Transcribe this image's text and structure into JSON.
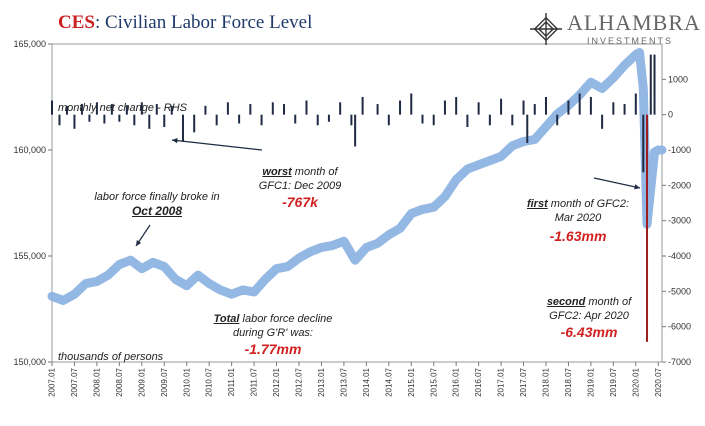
{
  "title": {
    "code": "CES",
    "rest": ": Civilian Labor Force Level"
  },
  "logo": {
    "name": "ALHAMBRA",
    "sub": "INVESTMENTS",
    "icon": "diamond-logo-icon"
  },
  "colors": {
    "level_line": "#8eb4e3",
    "bars": "#1f2a44",
    "highlight_bar": "#9b1c1c",
    "title_code": "#cc1f1f",
    "annotation_value": "#d22020"
  },
  "annotations": {
    "rhs_label": "monthly net change - RHS",
    "units_label": "thousands of persons",
    "oct2008_line1": "labor force finally broke in",
    "oct2008_line2": "Oct 2008",
    "gfc1_line1a": "worst",
    "gfc1_line1b": " month of",
    "gfc1_line2": "GFC1: Dec 2009",
    "gfc1_value": "-767k",
    "total_line1a": "Total",
    "total_line1b": " labor force decline",
    "total_line2": "during G'R' was:",
    "total_value": "-1.77mm",
    "first_line1a": "first",
    "first_line1b": " month of GFC2:",
    "first_line2": "Mar 2020",
    "first_value": "-1.63mm",
    "second_line1a": "second",
    "second_line1b": " month of",
    "second_line2": "GFC2: Apr 2020",
    "second_value": "-6.43mm"
  },
  "chart_data": {
    "type": "line",
    "title": "CES: Civilian Labor Force Level",
    "ylabel_left": "thousands of persons",
    "ylabel_right": "monthly net change - RHS",
    "ylim_left": [
      150000,
      165000
    ],
    "ylim_right": [
      -7000,
      2000
    ],
    "yticks_left": [
      "150,000",
      "155,000",
      "160,000",
      "165,000"
    ],
    "yticks_right": [
      "1000",
      "0",
      "-1000",
      "-2000",
      "-3000",
      "-4000",
      "-5000",
      "-6000",
      "-7000"
    ],
    "xticks": [
      "2007.01",
      "2007.07",
      "2008.01",
      "2008.07",
      "2009.01",
      "2009.07",
      "2010.01",
      "2010.07",
      "2011.01",
      "2011.07",
      "2012.01",
      "2012.07",
      "2013.01",
      "2013.07",
      "2014.01",
      "2014.07",
      "2015.01",
      "2015.07",
      "2016.01",
      "2016.07",
      "2017.01",
      "2017.07",
      "2018.01",
      "2018.07",
      "2019.01",
      "2019.07",
      "2020.01",
      "2020.07"
    ],
    "series": [
      {
        "name": "labor force level",
        "axis": "left",
        "points": [
          [
            "2007.01",
            153100
          ],
          [
            "2007.04",
            152900
          ],
          [
            "2007.07",
            153200
          ],
          [
            "2007.10",
            153700
          ],
          [
            "2008.01",
            153800
          ],
          [
            "2008.04",
            154100
          ],
          [
            "2008.07",
            154600
          ],
          [
            "2008.10",
            154800
          ],
          [
            "2009.01",
            154400
          ],
          [
            "2009.04",
            154700
          ],
          [
            "2009.07",
            154500
          ],
          [
            "2009.10",
            153900
          ],
          [
            "2010.01",
            153600
          ],
          [
            "2010.04",
            154100
          ],
          [
            "2010.07",
            153700
          ],
          [
            "2010.10",
            153400
          ],
          [
            "2011.01",
            153200
          ],
          [
            "2011.04",
            153400
          ],
          [
            "2011.07",
            153300
          ],
          [
            "2011.10",
            153900
          ],
          [
            "2012.01",
            154400
          ],
          [
            "2012.04",
            154500
          ],
          [
            "2012.07",
            154900
          ],
          [
            "2012.10",
            155200
          ],
          [
            "2013.01",
            155400
          ],
          [
            "2013.04",
            155500
          ],
          [
            "2013.07",
            155700
          ],
          [
            "2013.10",
            154800
          ],
          [
            "2014.01",
            155400
          ],
          [
            "2014.04",
            155600
          ],
          [
            "2014.07",
            156000
          ],
          [
            "2014.10",
            156300
          ],
          [
            "2015.01",
            157000
          ],
          [
            "2015.04",
            157200
          ],
          [
            "2015.07",
            157300
          ],
          [
            "2015.10",
            157800
          ],
          [
            "2016.01",
            158600
          ],
          [
            "2016.04",
            159100
          ],
          [
            "2016.07",
            159300
          ],
          [
            "2016.10",
            159500
          ],
          [
            "2017.01",
            159700
          ],
          [
            "2017.04",
            160200
          ],
          [
            "2017.07",
            160400
          ],
          [
            "2017.10",
            160500
          ],
          [
            "2018.01",
            161100
          ],
          [
            "2018.04",
            161700
          ],
          [
            "2018.07",
            162100
          ],
          [
            "2018.10",
            162600
          ],
          [
            "2019.01",
            163200
          ],
          [
            "2019.04",
            162900
          ],
          [
            "2019.07",
            163400
          ],
          [
            "2019.10",
            164000
          ],
          [
            "2020.01",
            164500
          ],
          [
            "2020.02",
            164600
          ],
          [
            "2020.03",
            162900
          ],
          [
            "2020.04",
            156500
          ],
          [
            "2020.05",
            158200
          ],
          [
            "2020.06",
            159900
          ],
          [
            "2020.07",
            160000
          ],
          [
            "2020.08",
            160000
          ]
        ]
      },
      {
        "name": "monthly net change",
        "axis": "right",
        "bars": [
          [
            "2007.01",
            400
          ],
          [
            "2007.03",
            -300
          ],
          [
            "2007.05",
            250
          ],
          [
            "2007.07",
            -400
          ],
          [
            "2007.09",
            300
          ],
          [
            "2007.11",
            -200
          ],
          [
            "2008.01",
            350
          ],
          [
            "2008.03",
            -250
          ],
          [
            "2008.05",
            300
          ],
          [
            "2008.07",
            -200
          ],
          [
            "2008.09",
            250
          ],
          [
            "2008.11",
            -300
          ],
          [
            "2009.01",
            350
          ],
          [
            "2009.03",
            -400
          ],
          [
            "2009.05",
            300
          ],
          [
            "2009.07",
            -350
          ],
          [
            "2009.09",
            250
          ],
          [
            "2009.12",
            -767
          ],
          [
            "2010.03",
            -500
          ],
          [
            "2010.06",
            250
          ],
          [
            "2010.09",
            -300
          ],
          [
            "2010.12",
            350
          ],
          [
            "2011.03",
            -250
          ],
          [
            "2011.06",
            300
          ],
          [
            "2011.09",
            -300
          ],
          [
            "2011.12",
            350
          ],
          [
            "2012.03",
            300
          ],
          [
            "2012.06",
            -250
          ],
          [
            "2012.09",
            400
          ],
          [
            "2012.12",
            -300
          ],
          [
            "2013.03",
            -200
          ],
          [
            "2013.06",
            350
          ],
          [
            "2013.09",
            -300
          ],
          [
            "2013.10",
            -900
          ],
          [
            "2013.12",
            500
          ],
          [
            "2014.04",
            300
          ],
          [
            "2014.07",
            -300
          ],
          [
            "2014.10",
            400
          ],
          [
            "2015.01",
            600
          ],
          [
            "2015.04",
            -250
          ],
          [
            "2015.07",
            -300
          ],
          [
            "2015.10",
            400
          ],
          [
            "2016.01",
            500
          ],
          [
            "2016.04",
            -350
          ],
          [
            "2016.07",
            350
          ],
          [
            "2016.10",
            -300
          ],
          [
            "2017.01",
            450
          ],
          [
            "2017.04",
            -300
          ],
          [
            "2017.07",
            400
          ],
          [
            "2017.08",
            -800
          ],
          [
            "2017.10",
            300
          ],
          [
            "2018.01",
            500
          ],
          [
            "2018.04",
            -300
          ],
          [
            "2018.07",
            400
          ],
          [
            "2018.10",
            600
          ],
          [
            "2019.01",
            500
          ],
          [
            "2019.04",
            -400
          ],
          [
            "2019.07",
            350
          ],
          [
            "2019.10",
            300
          ],
          [
            "2020.01",
            600
          ],
          [
            "2020.03",
            -1630
          ],
          [
            "2020.04",
            -6430
          ],
          [
            "2020.05",
            1700
          ],
          [
            "2020.06",
            1700
          ]
        ]
      }
    ]
  }
}
